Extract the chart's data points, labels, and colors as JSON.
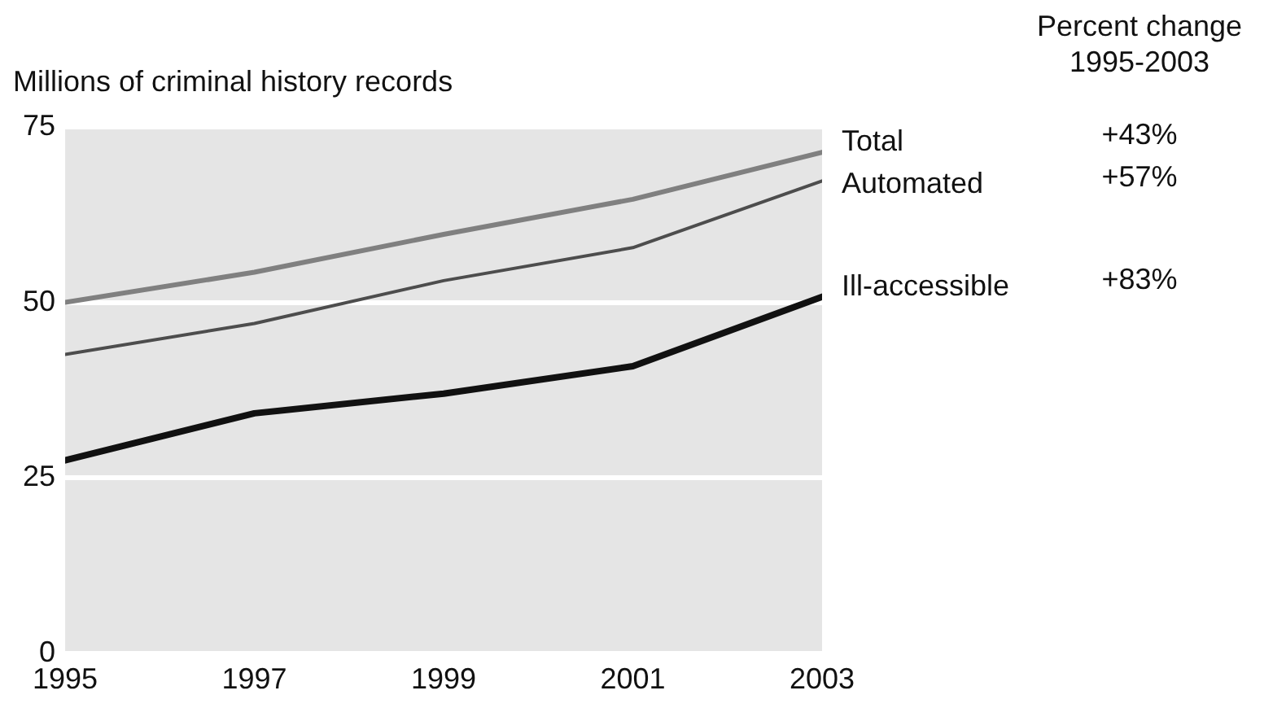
{
  "chart_data": {
    "type": "line",
    "ylabel": "Millions of criminal history records",
    "x": [
      1995,
      1997,
      1999,
      2001,
      2003
    ],
    "series": [
      {
        "name": "Total",
        "color": "#808080",
        "values": [
          50,
          54.3,
          59.7,
          64.7,
          71.4
        ]
      },
      {
        "name": "Automated",
        "color": "#4d4d4d",
        "values": [
          42.6,
          47,
          53.1,
          57.8,
          67.3
        ]
      },
      {
        "name": "Ill-accessible",
        "color": "#111111",
        "values": [
          27.5,
          34.2,
          37,
          40.9,
          50.8
        ]
      }
    ],
    "xlim": [
      1995,
      2003
    ],
    "xticks": [
      1995,
      1997,
      1999,
      2001,
      2003
    ],
    "ylim": [
      0,
      75
    ],
    "yticks": [
      0,
      25,
      50,
      75
    ],
    "grid": "y",
    "legend": false,
    "marker": "none",
    "line_style": "solid",
    "annotations": [
      "Percent change\n1995-2003",
      "+43%",
      "+57%",
      "+83%"
    ]
  }
}
